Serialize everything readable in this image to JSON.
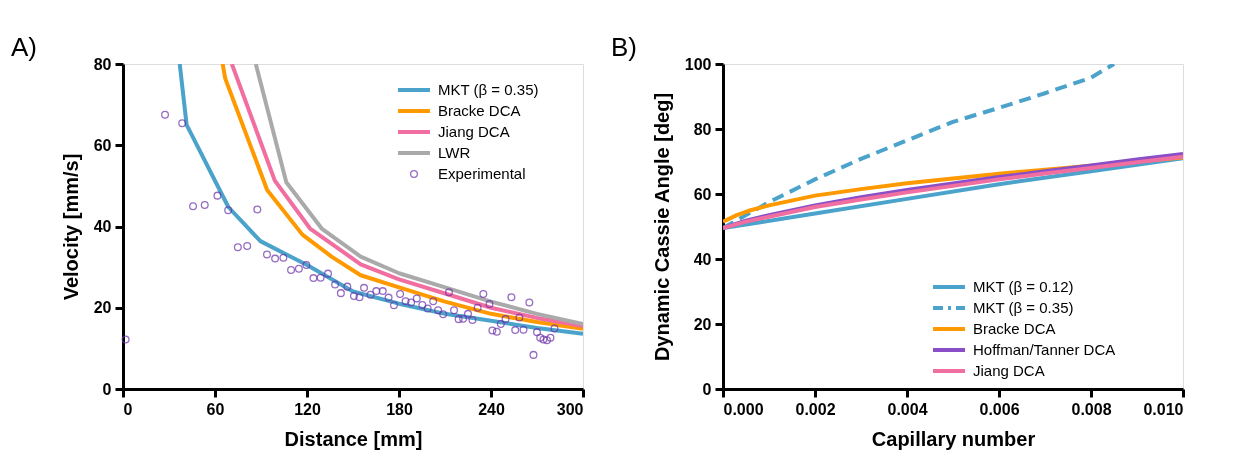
{
  "chart_data": [
    {
      "type": "line",
      "xlabel": "Distance [mm]",
      "ylabel": "Velocity [mm/s]",
      "annotations": [
        "A)"
      ],
      "xlim": [
        0,
        300
      ],
      "xticks": [
        0,
        60,
        120,
        180,
        240,
        300
      ],
      "ylim": [
        0,
        80
      ],
      "yticks": [
        0,
        20,
        40,
        60,
        80
      ],
      "legend": "top right",
      "grid": false,
      "series": [
        {
          "name": "MKT (β = 0.35)",
          "color": "#4ba3cc",
          "x": [
            37,
            41.5,
            68.7,
            89.6,
            120,
            150,
            180,
            210,
            240,
            270,
            300
          ],
          "values": [
            80,
            65,
            44.8,
            36.4,
            30.5,
            24,
            21,
            18.5,
            16.8,
            15,
            13.6
          ]
        },
        {
          "name": "Bracke DCA",
          "color": "#ff9900",
          "x": [
            65,
            66.7,
            94,
            117,
            136,
            155,
            180,
            210,
            240,
            270,
            300
          ],
          "values": [
            80,
            76.4,
            49,
            38,
            32.6,
            28,
            25,
            21.5,
            18.5,
            16.5,
            14.8
          ]
        },
        {
          "name": "Jiang DCA",
          "color": "#f06ea0",
          "x": [
            71,
            99,
            122,
            155,
            180,
            210,
            240,
            270,
            300
          ],
          "values": [
            80,
            51.3,
            39.5,
            30.7,
            27,
            23.5,
            20,
            17.5,
            15.5
          ]
        },
        {
          "name": "LWR",
          "color": "#aaaaaa",
          "x": [
            86.6,
            106.5,
            129.6,
            155,
            180,
            210,
            240,
            270,
            300
          ],
          "values": [
            80,
            50.9,
            39.5,
            32.6,
            28.5,
            25,
            21.5,
            18.5,
            16
          ]
        },
        {
          "name": "Experimental",
          "type": "scatter",
          "marker": "circle",
          "color": "#6a2fa8",
          "x": [
            1.7,
            27.4,
            38.6,
            45.7,
            53.3,
            61.6,
            68.6,
            87.6,
            74.9,
            81,
            93.9,
            99.2,
            104.6,
            109.6,
            114.7,
            119.6,
            124.2,
            128.9,
            133.7,
            138.3,
            142.1,
            146.3,
            150.6,
            154.2,
            157.2,
            161.4,
            165.2,
            169.4,
            173.2,
            176.7,
            180.7,
            184.3,
            187.9,
            191.6,
            195.2,
            198.7,
            202.3,
            205.5,
            208.8,
            212.6,
            215.9,
            218.9,
            221.8,
            225,
            227.9,
            231.3,
            235,
            239,
            240.9,
            243.8,
            246.4,
            249.5,
            253.3,
            255.8,
            258.5,
            261.2,
            265,
            267.7,
            270,
            272.1,
            274.2,
            276.5,
            278.8,
            281.4
          ],
          "values": [
            12.2,
            67.5,
            65.4,
            45,
            45.3,
            47.6,
            44,
            44.2,
            34.9,
            35.2,
            33.1,
            32.1,
            32.3,
            29.3,
            29.6,
            30.5,
            27.3,
            27.4,
            28.4,
            25.7,
            23.6,
            25.2,
            22.9,
            22.6,
            24.9,
            23.2,
            24.1,
            24.1,
            22.5,
            20.6,
            23.4,
            21.6,
            21.3,
            22.3,
            20.7,
            19.8,
            21.6,
            19.4,
            18.4,
            23.8,
            19.4,
            17.2,
            17.3,
            18.5,
            17,
            20,
            23.4,
            20.9,
            14.4,
            14.1,
            16,
            17.2,
            22.6,
            14.5,
            17.6,
            14.6,
            21.3,
            8.4,
            14,
            12.6,
            12.2,
            12,
            12.6,
            14.9
          ]
        }
      ]
    },
    {
      "type": "line",
      "xlabel": "Capillary number",
      "ylabel": "Dynamic Cassie Angle [deg]",
      "annotations": [
        "B)"
      ],
      "xlim": [
        0,
        0.01
      ],
      "xticks": [
        {
          "value": 0,
          "label": "0.000"
        },
        {
          "value": 0.002,
          "label": "0.002"
        },
        {
          "value": 0.004,
          "label": "0.004"
        },
        {
          "value": 0.006,
          "label": "0.006"
        },
        {
          "value": 0.008,
          "label": "0.008"
        },
        {
          "value": 0.01,
          "label": "0.010"
        }
      ],
      "ylim": [
        0,
        100
      ],
      "yticks": [
        0,
        20,
        40,
        60,
        80,
        100
      ],
      "legend": "bottom right",
      "grid": false,
      "series": [
        {
          "name": "MKT (β = 0.12)",
          "color": "#4ba3cc",
          "x": [
            0,
            0.002,
            0.004,
            0.006,
            0.008,
            0.01
          ],
          "values": [
            49.5,
            54,
            58.5,
            63,
            67,
            71
          ]
        },
        {
          "name": "MKT (β = 0.35)",
          "color": "#4ba3cc",
          "line_style": "dashed",
          "x": [
            0,
            0.0005,
            0.001,
            0.002,
            0.003,
            0.004,
            0.005,
            0.006,
            0.007,
            0.008,
            0.0085
          ],
          "values": [
            49.5,
            53.5,
            57.5,
            64.5,
            70.8,
            76.5,
            82.2,
            86.5,
            91,
            95.8,
            100
          ]
        },
        {
          "name": "Bracke DCA",
          "color": "#ff9900",
          "x": [
            0,
            0.0003,
            0.0006,
            0.001,
            0.002,
            0.003,
            0.004,
            0.005,
            0.006,
            0.007,
            0.008,
            0.009,
            0.01
          ],
          "values": [
            51.5,
            53.5,
            55,
            56.5,
            59.5,
            61.5,
            63.3,
            64.8,
            66.2,
            67.5,
            68.7,
            70,
            71.2
          ]
        },
        {
          "name": "Hoffman/Tanner DCA",
          "color": "#8a4fc8",
          "x": [
            0,
            0.0005,
            0.001,
            0.002,
            0.003,
            0.004,
            0.005,
            0.006,
            0.007,
            0.008,
            0.009,
            0.01
          ],
          "values": [
            49.5,
            51.8,
            53.5,
            56.5,
            59,
            61.2,
            63.2,
            65.2,
            67,
            68.8,
            70.6,
            72.3
          ]
        },
        {
          "name": "Jiang DCA",
          "color": "#f06ea0",
          "x": [
            0,
            0.0005,
            0.001,
            0.002,
            0.003,
            0.004,
            0.005,
            0.006,
            0.007,
            0.008,
            0.009,
            0.01
          ],
          "values": [
            49.5,
            51.5,
            53,
            56,
            58.3,
            60.5,
            62.5,
            64.5,
            66.3,
            68,
            69.8,
            71.5
          ]
        }
      ]
    }
  ]
}
